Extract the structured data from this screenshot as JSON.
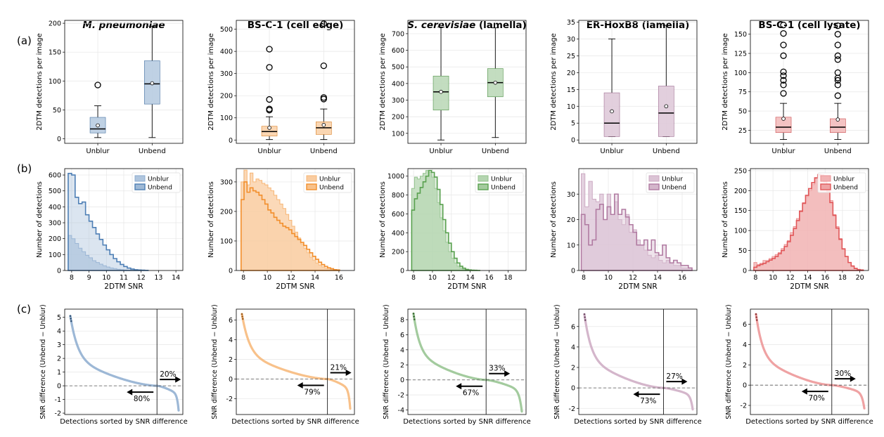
{
  "row_labels": [
    "(a)",
    "(b)",
    "(c)"
  ],
  "columns": [
    {
      "title_parts": [
        {
          "text": "M. pneumoniae",
          "italic": true
        }
      ],
      "color": "#4e7fb5"
    },
    {
      "title_parts": [
        {
          "text": "BS-C-1 (cell edge)",
          "italic": false
        }
      ],
      "color": "#f28e2b"
    },
    {
      "title_parts": [
        {
          "text": "S. cerevisiae",
          "italic": true
        },
        {
          "text": " (lamella)",
          "italic": false
        }
      ],
      "color": "#59a14f"
    },
    {
      "title_parts": [
        {
          "text": "ER-HoxB8 (lamella)",
          "italic": false
        }
      ],
      "color": "#b07aa1"
    },
    {
      "title_parts": [
        {
          "text": "BS-C-1 (cell lysate)",
          "italic": false
        }
      ],
      "color": "#e15759"
    }
  ],
  "chart_data": [
    {
      "type": "box",
      "panel": "(a)",
      "ylabel": "2DTM detections per image",
      "categories": [
        "Unblur",
        "Unbend"
      ],
      "facets": [
        {
          "ylim": [
            -8,
            205
          ],
          "yticks": [
            0,
            50,
            100,
            150,
            200
          ],
          "boxes": [
            {
              "min": 2,
              "q1": 10,
              "median": 17,
              "q3": 37,
              "max": 57,
              "mean": 23,
              "outliers": [
                93
              ]
            },
            {
              "min": 2,
              "q1": 60,
              "median": 95,
              "q3": 135,
              "max": 195,
              "mean": 96,
              "outliers": []
            }
          ]
        },
        {
          "ylim": [
            -15,
            540
          ],
          "yticks": [
            0,
            100,
            200,
            300,
            400,
            500
          ],
          "boxes": [
            {
              "min": 2,
              "q1": 18,
              "median": 38,
              "q3": 62,
              "max": 105,
              "mean": 55,
              "outliers": [
                135,
                140,
                183,
                328,
                410
              ]
            },
            {
              "min": 2,
              "q1": 25,
              "median": 55,
              "q3": 82,
              "max": 140,
              "mean": 68,
              "outliers": [
                185,
                192,
                335,
                525
              ]
            }
          ]
        },
        {
          "ylim": [
            40,
            780
          ],
          "yticks": [
            100,
            200,
            300,
            400,
            500,
            600,
            700
          ],
          "boxes": [
            {
              "min": 60,
              "q1": 240,
              "median": 350,
              "q3": 445,
              "max": 740,
              "mean": 350,
              "outliers": []
            },
            {
              "min": 75,
              "q1": 320,
              "median": 405,
              "q3": 490,
              "max": 735,
              "mean": 405,
              "outliers": []
            }
          ]
        },
        {
          "ylim": [
            -1,
            35.5
          ],
          "yticks": [
            0,
            5,
            10,
            15,
            20,
            25,
            30,
            35
          ],
          "boxes": [
            {
              "min": 1,
              "q1": 1,
              "median": 5,
              "q3": 14,
              "max": 30,
              "mean": 8.5,
              "outliers": []
            },
            {
              "min": 1,
              "q1": 1,
              "median": 8,
              "q3": 16,
              "max": 34,
              "mean": 10,
              "outliers": []
            }
          ]
        },
        {
          "ylim": [
            8,
            168
          ],
          "yticks": [
            25,
            50,
            75,
            100,
            125,
            150
          ],
          "boxes": [
            {
              "min": 13,
              "q1": 22,
              "median": 29,
              "q3": 42,
              "max": 60,
              "mean": 40,
              "outliers": [
                73,
                84,
                90,
                96,
                101,
                122,
                136,
                151,
                162
              ]
            },
            {
              "min": 13,
              "q1": 22,
              "median": 29,
              "q3": 40,
              "max": 60,
              "mean": 39,
              "outliers": [
                70,
                84,
                90,
                93,
                100,
                117,
                122,
                136,
                150,
                161
              ]
            }
          ]
        }
      ]
    },
    {
      "type": "histogram",
      "panel": "(b)",
      "xlabel": "2DTM SNR",
      "ylabel": "Number of detections",
      "legend": [
        "Unblur",
        "Unbend"
      ],
      "legend_position": "top-right",
      "facets": [
        {
          "xlim": [
            7.6,
            14.4
          ],
          "xticks": [
            8,
            9,
            10,
            11,
            12,
            13,
            14
          ],
          "ylim": [
            0,
            640
          ],
          "yticks": [
            0,
            100,
            200,
            300,
            400,
            500,
            600
          ],
          "bin_start": 7.8,
          "bin_width": 0.2,
          "unblur": [
            220,
            200,
            170,
            140,
            118,
            95,
            80,
            62,
            50,
            40,
            30,
            22,
            16,
            12,
            8,
            5,
            3,
            2,
            1
          ],
          "unbend": [
            610,
            600,
            460,
            420,
            430,
            350,
            310,
            270,
            230,
            195,
            160,
            130,
            100,
            75,
            55,
            38,
            25,
            15,
            9,
            5,
            3,
            2,
            1
          ]
        },
        {
          "xlim": [
            7.4,
            17.3
          ],
          "xticks": [
            8,
            10,
            12,
            14,
            16
          ],
          "ylim": [
            0,
            345
          ],
          "yticks": [
            0,
            100,
            200,
            300
          ],
          "bin_start": 7.8,
          "bin_width": 0.25,
          "unblur": [
            300,
            340,
            290,
            330,
            300,
            310,
            305,
            295,
            290,
            280,
            270,
            255,
            240,
            225,
            210,
            190,
            170,
            150,
            130,
            110,
            90,
            75,
            60,
            45,
            35,
            25,
            18,
            12,
            8,
            5,
            3,
            2
          ],
          "unbend": [
            240,
            300,
            265,
            280,
            270,
            265,
            255,
            240,
            225,
            205,
            195,
            180,
            170,
            160,
            150,
            145,
            138,
            125,
            115,
            105,
            95,
            85,
            72,
            60,
            48,
            38,
            28,
            20,
            14,
            9,
            6,
            3,
            2
          ]
        },
        {
          "xlim": [
            7.4,
            19.9
          ],
          "xticks": [
            8,
            10,
            12,
            14,
            16,
            18
          ],
          "ylim": [
            0,
            1080
          ],
          "yticks": [
            0,
            200,
            400,
            600,
            800,
            1000
          ],
          "bin_start": 7.8,
          "bin_width": 0.3,
          "unblur": [
            870,
            990,
            970,
            1000,
            1030,
            1060,
            1040,
            990,
            870,
            720,
            560,
            420,
            300,
            200,
            130,
            80,
            45,
            25,
            12,
            6,
            3,
            2
          ],
          "unbend": [
            640,
            760,
            820,
            880,
            940,
            1000,
            1060,
            1040,
            990,
            860,
            700,
            540,
            400,
            290,
            200,
            130,
            80,
            45,
            25,
            12,
            6,
            3,
            2,
            1
          ]
        },
        {
          "xlim": [
            7.6,
            17.2
          ],
          "xticks": [
            8,
            10,
            12,
            14,
            16
          ],
          "ylim": [
            0,
            40
          ],
          "yticks": [
            0,
            10,
            20,
            30
          ],
          "bin_start": 7.8,
          "bin_width": 0.3,
          "unblur": [
            38,
            25,
            35,
            28,
            27,
            30,
            20,
            30,
            22,
            27,
            20,
            18,
            22,
            15,
            16,
            12,
            10,
            8,
            6,
            5,
            6,
            4,
            3,
            4,
            3,
            2,
            2,
            1,
            1,
            1
          ],
          "unbend": [
            22,
            18,
            10,
            12,
            24,
            26,
            20,
            25,
            22,
            30,
            22,
            24,
            21,
            18,
            15,
            10,
            10,
            12,
            8,
            12,
            7,
            6,
            10,
            5,
            3,
            4,
            3,
            2,
            2,
            1
          ]
        },
        {
          "xlim": [
            7.4,
            21.0
          ],
          "xticks": [
            8,
            10,
            12,
            14,
            16,
            18,
            20
          ],
          "ylim": [
            0,
            255
          ],
          "yticks": [
            0,
            50,
            100,
            150,
            200,
            250
          ],
          "bin_start": 7.8,
          "bin_width": 0.35,
          "unblur": [
            20,
            15,
            18,
            25,
            25,
            30,
            35,
            40,
            45,
            55,
            65,
            75,
            95,
            110,
            130,
            150,
            170,
            185,
            200,
            215,
            230,
            238,
            240,
            225,
            200,
            175,
            140,
            110,
            80,
            55,
            35,
            20,
            12,
            6,
            3,
            2
          ],
          "unbend": [
            8,
            12,
            15,
            18,
            22,
            26,
            30,
            35,
            42,
            50,
            60,
            72,
            88,
            105,
            125,
            148,
            168,
            188,
            205,
            220,
            232,
            240,
            235,
            222,
            198,
            170,
            138,
            106,
            78,
            54,
            35,
            20,
            11,
            5,
            2,
            1
          ]
        }
      ]
    },
    {
      "type": "scatter",
      "panel": "(c)",
      "xlabel": "Detections sorted by SNR difference",
      "ylabel": "SNR difference (Unbend − Unblur)",
      "facets": [
        {
          "ylim": [
            -2.1,
            5.6
          ],
          "yticks": [
            -2,
            -1,
            0,
            1,
            2,
            3,
            4,
            5
          ],
          "crossing_fraction": 0.8,
          "right_percent": "20%",
          "left_percent": "80%",
          "max": 5.1,
          "min": -1.8
        },
        {
          "ylim": [
            -3.6,
            7.1
          ],
          "yticks": [
            -2,
            0,
            2,
            4,
            6
          ],
          "crossing_fraction": 0.79,
          "right_percent": "21%",
          "left_percent": "79%",
          "max": 6.6,
          "min": -3.0
        },
        {
          "ylim": [
            -4.6,
            9.4
          ],
          "yticks": [
            -4,
            -2,
            0,
            2,
            4,
            6,
            8
          ],
          "crossing_fraction": 0.67,
          "right_percent": "33%",
          "left_percent": "67%",
          "max": 8.8,
          "min": -4.2
        },
        {
          "ylim": [
            -2.6,
            7.7
          ],
          "yticks": [
            -2,
            0,
            2,
            4,
            6
          ],
          "crossing_fraction": 0.73,
          "right_percent": "27%",
          "left_percent": "73%",
          "max": 7.2,
          "min": -2.1
        },
        {
          "ylim": [
            -2.9,
            7.5
          ],
          "yticks": [
            -2,
            0,
            2,
            4,
            6
          ],
          "crossing_fraction": 0.7,
          "right_percent": "30%",
          "left_percent": "70%",
          "max": 7.0,
          "min": -2.3
        }
      ]
    }
  ]
}
